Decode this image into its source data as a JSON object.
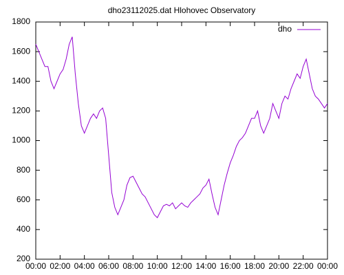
{
  "chart_data": {
    "type": "line",
    "title": "dho23112025.dat Hlohovec Observatory",
    "x": [
      0,
      0.25,
      0.5,
      0.75,
      1,
      1.25,
      1.5,
      1.75,
      2,
      2.25,
      2.5,
      2.75,
      3,
      3.25,
      3.5,
      3.75,
      4,
      4.25,
      4.5,
      4.75,
      5,
      5.25,
      5.5,
      5.75,
      6,
      6.25,
      6.5,
      6.75,
      7,
      7.25,
      7.5,
      7.75,
      8,
      8.25,
      8.5,
      8.75,
      9,
      9.25,
      9.5,
      9.75,
      10,
      10.25,
      10.5,
      10.75,
      11,
      11.25,
      11.5,
      11.75,
      12,
      12.25,
      12.5,
      12.75,
      13,
      13.25,
      13.5,
      13.75,
      14,
      14.25,
      14.5,
      14.75,
      15,
      15.25,
      15.5,
      15.75,
      16,
      16.25,
      16.5,
      16.75,
      17,
      17.25,
      17.5,
      17.75,
      18,
      18.25,
      18.5,
      18.75,
      19,
      19.25,
      19.5,
      19.75,
      20,
      20.25,
      20.5,
      20.75,
      21,
      21.25,
      21.5,
      21.75,
      22,
      22.25,
      22.5,
      22.75,
      23,
      23.25,
      23.5,
      23.75,
      24
    ],
    "series": [
      {
        "name": "dho",
        "color": "#9400d3",
        "values": [
          1650,
          1600,
          1550,
          1500,
          1500,
          1400,
          1350,
          1400,
          1450,
          1480,
          1550,
          1650,
          1700,
          1450,
          1250,
          1100,
          1050,
          1100,
          1150,
          1180,
          1150,
          1200,
          1220,
          1150,
          900,
          650,
          550,
          500,
          550,
          600,
          700,
          750,
          760,
          720,
          680,
          640,
          620,
          580,
          540,
          500,
          480,
          520,
          560,
          570,
          560,
          580,
          540,
          560,
          580,
          560,
          550,
          580,
          600,
          620,
          640,
          680,
          700,
          740,
          640,
          550,
          500,
          600,
          700,
          780,
          850,
          900,
          960,
          1000,
          1020,
          1050,
          1100,
          1150,
          1150,
          1200,
          1100,
          1050,
          1100,
          1150,
          1250,
          1200,
          1150,
          1250,
          1300,
          1280,
          1350,
          1400,
          1450,
          1420,
          1500,
          1550,
          1450,
          1350,
          1300,
          1280,
          1250,
          1220,
          1250
        ]
      }
    ],
    "xlim": [
      0,
      24
    ],
    "xticks": [
      {
        "value": 0,
        "label": "00:00"
      },
      {
        "value": 2,
        "label": "02:00"
      },
      {
        "value": 4,
        "label": "04:00"
      },
      {
        "value": 6,
        "label": "06:00"
      },
      {
        "value": 8,
        "label": "08:00"
      },
      {
        "value": 10,
        "label": "10:00"
      },
      {
        "value": 12,
        "label": "12:00"
      },
      {
        "value": 14,
        "label": "14:00"
      },
      {
        "value": 16,
        "label": "16:00"
      },
      {
        "value": 18,
        "label": "18:00"
      },
      {
        "value": 20,
        "label": "20:00"
      },
      {
        "value": 22,
        "label": "22:00"
      },
      {
        "value": 24,
        "label": "00:00"
      }
    ],
    "ylim": [
      200,
      1800
    ],
    "yticks": [
      200,
      400,
      600,
      800,
      1000,
      1200,
      1400,
      1600,
      1800
    ],
    "legend": "top-right"
  }
}
